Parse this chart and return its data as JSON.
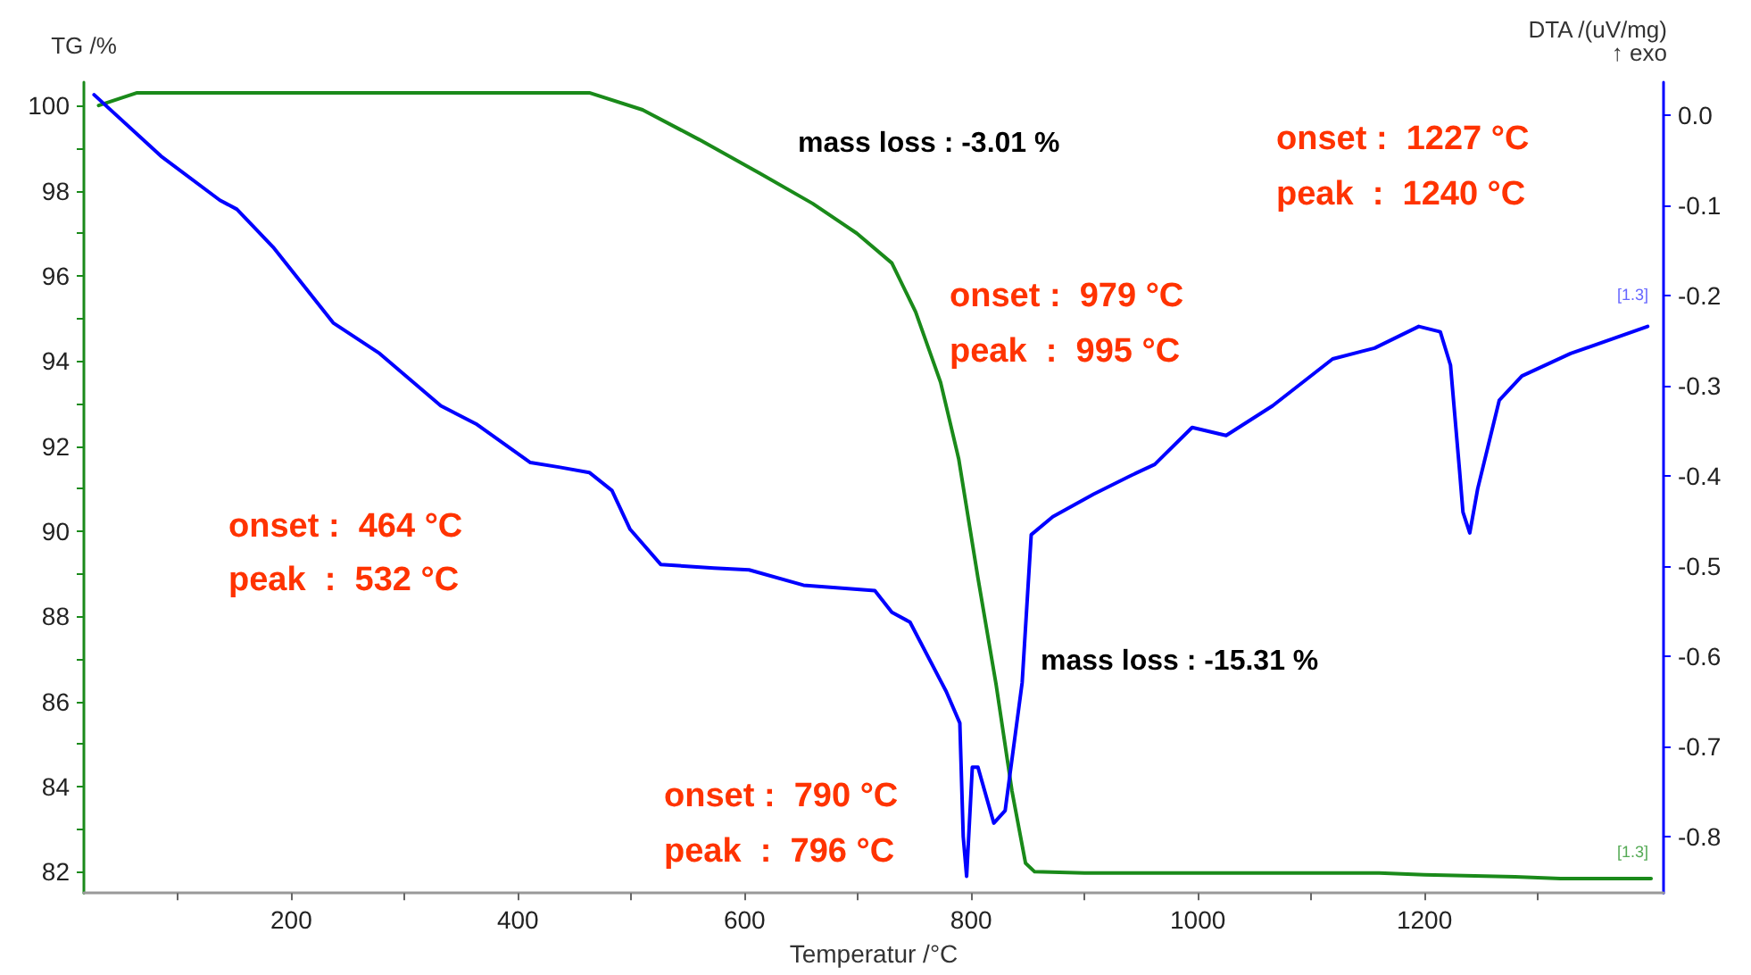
{
  "chart_data": {
    "type": "line",
    "xlabel": "Temperatur /°C",
    "ylabel": "TG /%",
    "y2label": "DTA /(uV/mg)\n↑ exo",
    "xlim": [
      17,
      1411
    ],
    "ylim": [
      81.5,
      100.55
    ],
    "y2lim": [
      -0.8625,
      0.037
    ],
    "xticks": [
      {
        "value": 100,
        "label": null
      },
      200,
      {
        "value": 300,
        "label": null
      },
      400,
      {
        "value": 500,
        "label": null
      },
      600,
      {
        "value": 700,
        "label": null
      },
      800,
      {
        "value": 900,
        "label": null
      },
      1000,
      {
        "value": 1100,
        "label": null
      },
      1200,
      {
        "value": 1300,
        "label": null
      }
    ],
    "yticks": [
      82,
      {
        "value": 83,
        "label": null
      },
      84,
      {
        "value": 85,
        "label": null
      },
      86,
      {
        "value": 87,
        "label": null
      },
      88,
      {
        "value": 89,
        "label": null
      },
      90,
      {
        "value": 91,
        "label": null
      },
      92,
      {
        "value": 93,
        "label": null
      },
      94,
      {
        "value": 95,
        "label": null
      },
      96,
      {
        "value": 97,
        "label": null
      },
      98,
      {
        "value": 99,
        "label": null
      },
      100
    ],
    "y2ticks": [
      {
        "value": 0,
        "label": "0.0"
      },
      -0.1,
      -0.2,
      -0.3,
      -0.4,
      -0.5,
      -0.6,
      -0.7,
      -0.8
    ],
    "grid": false,
    "marker": "none",
    "line_style": "solid",
    "series": [
      {
        "color": "#1a8a1a",
        "x": [
          30,
          64,
          463,
          510,
          560,
          614,
          660,
          699,
          730,
          751,
          773,
          789,
          806,
          822,
          836,
          848,
          856,
          900,
          1000,
          1160,
          1200,
          1280,
          1320,
          1400
        ],
        "values": [
          100.0,
          100.3,
          100.3,
          99.9,
          99.2,
          98.4,
          97.7,
          97.0,
          96.3,
          95.15,
          93.5,
          91.7,
          88.9,
          86.4,
          83.9,
          82.2,
          82.0,
          81.97,
          81.97,
          81.97,
          81.93,
          81.88,
          81.84,
          81.84
        ]
      },
      {
        "color": "#0000ff",
        "axis": "y2",
        "x": [
          26,
          85,
          137,
          152,
          184,
          237,
          278,
          332,
          363,
          411,
          436,
          463,
          483,
          499,
          526,
          573,
          604,
          652,
          715,
          730,
          746,
          778,
          790,
          793,
          796,
          801,
          806,
          820,
          830,
          845,
          853,
          872,
          908,
          940,
          962,
          995,
          1025,
          1066,
          1119,
          1156,
          1195,
          1214,
          1223,
          1231,
          1234,
          1240,
          1247,
          1266,
          1286,
          1329,
          1397
        ],
        "values": [
          0.023,
          -0.045,
          -0.094,
          -0.104,
          -0.146,
          -0.23,
          -0.264,
          -0.322,
          -0.342,
          -0.385,
          -0.39,
          -0.396,
          -0.416,
          -0.459,
          -0.498,
          -0.502,
          -0.504,
          -0.521,
          -0.527,
          -0.551,
          -0.562,
          -0.639,
          -0.674,
          -0.8,
          -0.844,
          -0.723,
          -0.723,
          -0.785,
          -0.771,
          -0.629,
          -0.465,
          -0.445,
          -0.42,
          -0.4,
          -0.387,
          -0.346,
          -0.355,
          -0.322,
          -0.27,
          -0.258,
          -0.234,
          -0.24,
          -0.277,
          -0.394,
          -0.44,
          -0.463,
          -0.414,
          -0.316,
          -0.289,
          -0.264,
          -0.234
        ]
      }
    ],
    "annotations": [
      "mass loss : -3.01 %",
      "onset :  1227 °C",
      "peak  :  1240 °C",
      "onset :  979 °C",
      "peak  :  995 °C",
      "onset :  464 °C",
      "peak  :  532 °C",
      "mass loss : -15.31 %",
      "onset :  790 °C",
      "peak  :  796 °C",
      "[1.3]",
      "[1.3]"
    ]
  }
}
